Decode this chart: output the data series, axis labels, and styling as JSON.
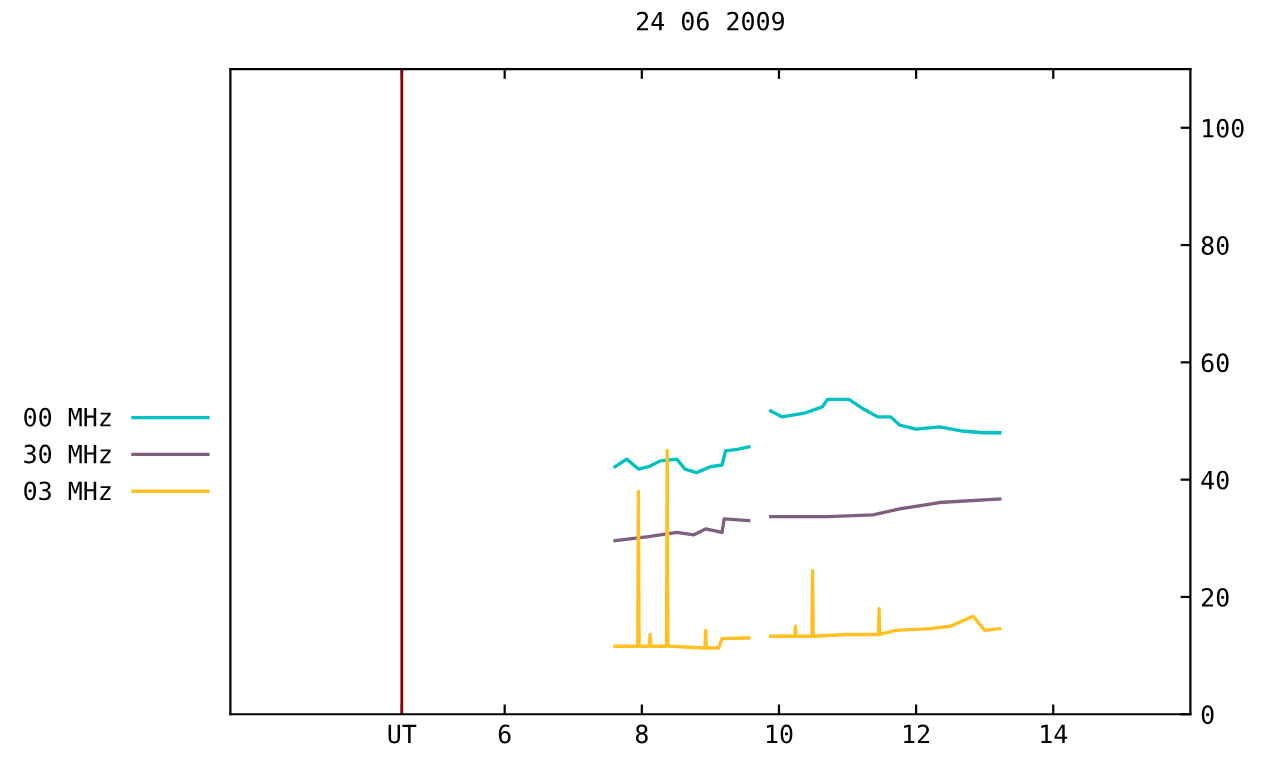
{
  "chart_data": {
    "type": "line",
    "title": "24 06 2009",
    "xlim": [
      2,
      16
    ],
    "xticks": [
      {
        "value": 4.5,
        "label": "UT"
      },
      6,
      8,
      10,
      12,
      14
    ],
    "ylim": [
      0,
      110
    ],
    "yticks": [
      0,
      20,
      40,
      60,
      80,
      100
    ],
    "grid": false,
    "legend": "left",
    "ref_lines": [
      {
        "axis": "x",
        "value": 4.5,
        "color": "#8b0000"
      }
    ],
    "series": [
      {
        "name": "00 MHz",
        "color": "#00c0c0",
        "x": [
          7.61,
          7.78,
          7.95,
          8.1,
          8.27,
          8.51,
          8.63,
          8.8,
          9.0,
          9.17,
          9.22,
          9.41,
          9.56,
          9.7,
          9.88,
          10.05,
          10.39,
          10.63,
          10.71,
          11.02,
          11.24,
          11.44,
          11.63,
          11.76,
          12.0,
          12.34,
          12.66,
          12.98,
          13.22
        ],
        "values": [
          42.2,
          43.5,
          41.8,
          42.2,
          43.2,
          43.5,
          41.8,
          41.2,
          42.2,
          42.5,
          44.9,
          45.2,
          45.6,
          null,
          51.7,
          50.7,
          51.4,
          52.4,
          53.7,
          53.7,
          52.0,
          50.7,
          50.7,
          49.3,
          48.6,
          49.0,
          48.3,
          48.0,
          48.0
        ]
      },
      {
        "name": "30 MHz",
        "color": "#7f5f7f",
        "x": [
          7.61,
          8.1,
          8.51,
          8.76,
          8.93,
          9.17,
          9.2,
          9.56,
          9.7,
          9.88,
          10.71,
          11.37,
          11.76,
          12.34,
          13.22
        ],
        "values": [
          29.6,
          30.3,
          31.0,
          30.6,
          31.6,
          31.0,
          33.3,
          33.0,
          null,
          33.7,
          33.7,
          34.0,
          35.0,
          36.1,
          36.7
        ]
      },
      {
        "name": "03 MHz",
        "color": "#ffc020",
        "x": [
          7.61,
          7.94,
          7.95,
          7.96,
          8.11,
          8.12,
          8.13,
          8.36,
          8.37,
          8.38,
          8.92,
          8.93,
          8.94,
          9.12,
          9.17,
          9.56,
          9.7,
          9.88,
          10.23,
          10.24,
          10.25,
          10.48,
          10.49,
          10.5,
          11.0,
          11.45,
          11.46,
          11.47,
          11.7,
          12.2,
          12.5,
          12.83,
          13.0,
          13.22
        ],
        "values": [
          11.6,
          11.6,
          38,
          11.6,
          11.6,
          13.6,
          11.6,
          11.6,
          45,
          11.6,
          11.3,
          14.3,
          11.3,
          11.3,
          12.9,
          13.0,
          null,
          13.3,
          13.3,
          15.0,
          13.3,
          13.3,
          24.5,
          13.3,
          13.6,
          13.6,
          18.0,
          13.6,
          14.3,
          14.6,
          15.0,
          16.7,
          14.3,
          14.6
        ]
      }
    ]
  }
}
